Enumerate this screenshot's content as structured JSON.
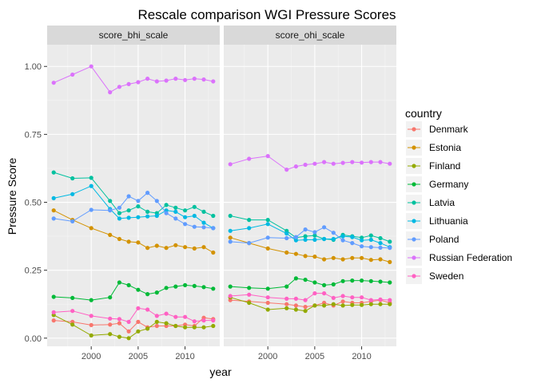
{
  "chart_data": {
    "type": "line",
    "title": "Rescale comparison WGI Pressure Scores",
    "xlabel": "year",
    "ylabel": "Pressure Score",
    "legend_title": "country",
    "legend_position": "right",
    "xlim": [
      1995.3,
      2013.7
    ],
    "ylim": [
      -0.03,
      1.08
    ],
    "x_ticks": [
      2000,
      2005,
      2010
    ],
    "y_ticks": [
      0.0,
      0.25,
      0.5,
      0.75,
      1.0
    ],
    "y_tick_labels": [
      "0.00",
      "0.25",
      "0.50",
      "0.75",
      "1.00"
    ],
    "x": [
      1996,
      1998,
      2000,
      2002,
      2003,
      2004,
      2005,
      2006,
      2007,
      2008,
      2009,
      2010,
      2011,
      2012,
      2013
    ],
    "facets": [
      {
        "label": "score_bhi_scale",
        "series": [
          {
            "name": "Denmark",
            "color": "#F8766D",
            "values": [
              0.065,
              0.06,
              0.048,
              0.05,
              0.055,
              0.025,
              0.06,
              0.04,
              0.045,
              0.045,
              0.045,
              0.05,
              0.045,
              0.075,
              0.07
            ]
          },
          {
            "name": "Estonia",
            "color": "#D39200",
            "values": [
              0.47,
              0.435,
              0.405,
              0.38,
              0.365,
              0.355,
              0.352,
              0.332,
              0.34,
              0.332,
              0.342,
              0.335,
              0.33,
              0.335,
              0.315
            ]
          },
          {
            "name": "Finland",
            "color": "#93AA00",
            "values": [
              0.085,
              0.05,
              0.01,
              0.015,
              0.005,
              0.0,
              0.025,
              0.035,
              0.06,
              0.055,
              0.045,
              0.04,
              0.04,
              0.04,
              0.045
            ]
          },
          {
            "name": "Germany",
            "color": "#00BA38",
            "values": [
              0.152,
              0.148,
              0.14,
              0.15,
              0.205,
              0.195,
              0.178,
              0.162,
              0.168,
              0.185,
              0.19,
              0.195,
              0.192,
              0.188,
              0.182
            ]
          },
          {
            "name": "Latvia",
            "color": "#00C19F",
            "values": [
              0.61,
              0.588,
              0.59,
              0.505,
              0.46,
              0.47,
              0.485,
              0.465,
              0.46,
              0.49,
              0.48,
              0.47,
              0.483,
              0.465,
              0.45
            ]
          },
          {
            "name": "Lithuania",
            "color": "#00B9E3",
            "values": [
              0.515,
              0.53,
              0.56,
              0.475,
              0.44,
              0.443,
              0.445,
              0.448,
              0.45,
              0.47,
              0.465,
              0.445,
              0.45,
              0.425,
              0.405
            ]
          },
          {
            "name": "Poland",
            "color": "#619CFF",
            "values": [
              0.44,
              0.43,
              0.472,
              0.47,
              0.48,
              0.522,
              0.505,
              0.535,
              0.505,
              0.46,
              0.44,
              0.42,
              0.41,
              0.408,
              0.405
            ]
          },
          {
            "name": "Russian Federation",
            "color": "#DB72FB",
            "values": [
              0.94,
              0.97,
              1.0,
              0.905,
              0.925,
              0.935,
              0.942,
              0.955,
              0.945,
              0.948,
              0.955,
              0.95,
              0.955,
              0.952,
              0.945
            ]
          },
          {
            "name": "Sweden",
            "color": "#FF61C3",
            "values": [
              0.095,
              0.1,
              0.082,
              0.072,
              0.07,
              0.06,
              0.11,
              0.105,
              0.082,
              0.09,
              0.078,
              0.078,
              0.062,
              0.065,
              0.065
            ]
          }
        ]
      },
      {
        "label": "score_ohi_scale",
        "series": [
          {
            "name": "Denmark",
            "color": "#F8766D",
            "values": [
              0.14,
              0.135,
              0.13,
              0.125,
              0.12,
              0.115,
              0.12,
              0.13,
              0.12,
              0.135,
              0.13,
              0.13,
              0.135,
              0.14,
              0.13
            ]
          },
          {
            "name": "Estonia",
            "color": "#D39200",
            "values": [
              0.37,
              0.35,
              0.33,
              0.315,
              0.31,
              0.302,
              0.3,
              0.29,
              0.295,
              0.29,
              0.295,
              0.295,
              0.288,
              0.29,
              0.28
            ]
          },
          {
            "name": "Finland",
            "color": "#93AA00",
            "values": [
              0.15,
              0.13,
              0.105,
              0.11,
              0.105,
              0.1,
              0.12,
              0.12,
              0.125,
              0.12,
              0.122,
              0.122,
              0.125,
              0.125,
              0.125
            ]
          },
          {
            "name": "Germany",
            "color": "#00BA38",
            "values": [
              0.19,
              0.185,
              0.182,
              0.19,
              0.22,
              0.215,
              0.205,
              0.195,
              0.198,
              0.21,
              0.212,
              0.212,
              0.21,
              0.208,
              0.205
            ]
          },
          {
            "name": "Latvia",
            "color": "#00C19F",
            "values": [
              0.45,
              0.435,
              0.435,
              0.395,
              0.37,
              0.375,
              0.378,
              0.365,
              0.362,
              0.38,
              0.375,
              0.37,
              0.378,
              0.368,
              0.355
            ]
          },
          {
            "name": "Lithuania",
            "color": "#00B9E3",
            "values": [
              0.395,
              0.405,
              0.42,
              0.385,
              0.36,
              0.362,
              0.362,
              0.365,
              0.365,
              0.375,
              0.372,
              0.36,
              0.362,
              0.35,
              0.335
            ]
          },
          {
            "name": "Poland",
            "color": "#619CFF",
            "values": [
              0.355,
              0.35,
              0.37,
              0.368,
              0.372,
              0.4,
              0.39,
              0.408,
              0.388,
              0.36,
              0.35,
              0.338,
              0.335,
              0.333,
              0.332
            ]
          },
          {
            "name": "Russian Federation",
            "color": "#DB72FB",
            "values": [
              0.64,
              0.66,
              0.67,
              0.62,
              0.632,
              0.638,
              0.642,
              0.648,
              0.642,
              0.645,
              0.648,
              0.646,
              0.648,
              0.648,
              0.642
            ]
          },
          {
            "name": "Sweden",
            "color": "#FF61C3",
            "values": [
              0.155,
              0.16,
              0.15,
              0.145,
              0.145,
              0.14,
              0.165,
              0.165,
              0.148,
              0.155,
              0.15,
              0.15,
              0.14,
              0.142,
              0.14
            ]
          }
        ]
      }
    ]
  }
}
